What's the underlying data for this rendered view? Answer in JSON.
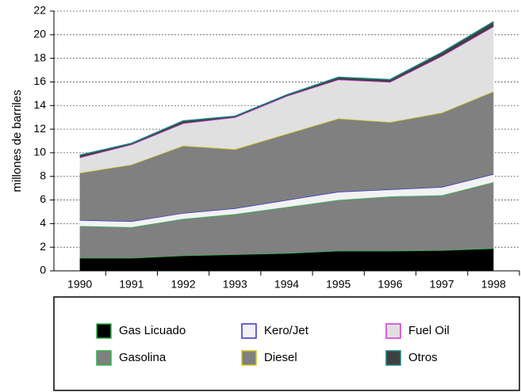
{
  "chart_data": {
    "type": "stacked_area",
    "y_label": "millones de barriles",
    "categories": [
      "1990",
      "1991",
      "1992",
      "1993",
      "1994",
      "1995",
      "1996",
      "1997",
      "1998"
    ],
    "ylim": [
      0,
      22
    ],
    "yticks": [
      0,
      2,
      4,
      6,
      8,
      10,
      12,
      14,
      16,
      18,
      20,
      22
    ],
    "grid": true,
    "series": [
      {
        "name": "Gas Licuado",
        "color": "#000000",
        "edge": "#2db34a",
        "values": [
          1.1,
          1.1,
          1.3,
          1.4,
          1.5,
          1.7,
          1.7,
          1.75,
          1.9
        ]
      },
      {
        "name": "Gasolina",
        "color": "#808080",
        "edge": "#2db34a",
        "values": [
          2.7,
          2.6,
          3.1,
          3.4,
          3.9,
          4.3,
          4.6,
          4.65,
          5.6
        ]
      },
      {
        "name": "Kero/Jet",
        "color": "#f2f2f2",
        "edge": "#3333cc",
        "values": [
          0.5,
          0.5,
          0.5,
          0.5,
          0.6,
          0.7,
          0.6,
          0.7,
          0.7
        ]
      },
      {
        "name": "Diesel",
        "color": "#808080",
        "edge": "#d4c21a",
        "values": [
          4.0,
          4.8,
          5.7,
          5.0,
          5.6,
          6.2,
          5.7,
          6.3,
          7.0
        ]
      },
      {
        "name": "Fuel Oil",
        "color": "#e0e0e0",
        "edge": "#d633d6",
        "values": [
          1.3,
          1.7,
          1.9,
          2.7,
          3.2,
          3.3,
          3.4,
          4.8,
          5.5
        ]
      },
      {
        "name": "Otros",
        "color": "#404040",
        "edge": "#1a8080",
        "values": [
          0.2,
          0.1,
          0.2,
          0.1,
          0.1,
          0.2,
          0.2,
          0.3,
          0.4
        ]
      }
    ]
  }
}
